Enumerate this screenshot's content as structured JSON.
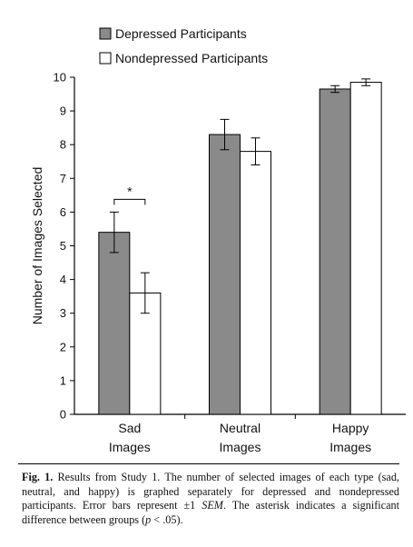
{
  "chart_data": {
    "type": "bar",
    "categories": [
      [
        "Sad",
        "Images"
      ],
      [
        "Neutral",
        "Images"
      ],
      [
        "Happy",
        "Images"
      ]
    ],
    "ylabel": "Number of Images Selected",
    "ylim": [
      0,
      10
    ],
    "yticks": [
      "0",
      "1",
      "2",
      "3",
      "4",
      "5",
      "6",
      "7",
      "8",
      "9",
      "10"
    ],
    "legend_position": "top",
    "series": [
      {
        "name": "Depressed Participants",
        "color": "#8a8a8a",
        "values": [
          5.4,
          8.3,
          9.65
        ],
        "error": [
          0.6,
          0.45,
          0.1
        ]
      },
      {
        "name": "Nondepressed Participants",
        "color": "#ffffff",
        "values": [
          3.6,
          7.8,
          9.85
        ],
        "error": [
          0.6,
          0.4,
          0.1
        ]
      }
    ],
    "annotations": [
      {
        "category_index": 0,
        "text": "*"
      }
    ]
  },
  "caption": {
    "label": "Fig. 1.",
    "text_1": " Results from Study 1. The number of selected images of each type (sad, neutral, and happy) is graphed separately for depressed and nondepressed participants. Error bars represent ±1 ",
    "sem": "SEM",
    "text_2": ". The asterisk indicates a significant difference between groups (",
    "p": "p",
    "text_3": " < .05)."
  }
}
